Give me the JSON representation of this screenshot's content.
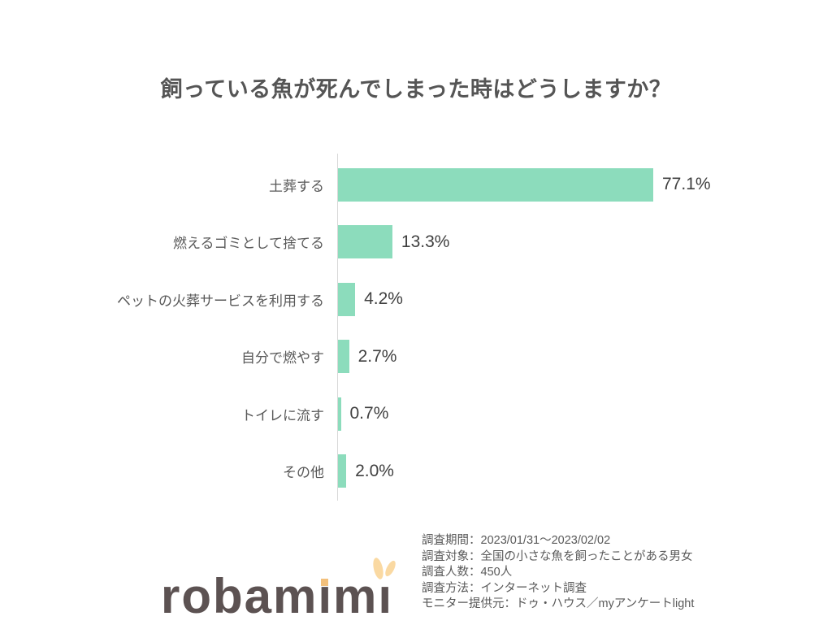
{
  "chart_data": {
    "type": "bar",
    "orientation": "horizontal",
    "title": "飼っている魚が死んでしまった時はどうしますか？",
    "categories": [
      "土葬する",
      "燃えるゴミとして捨てる",
      "ペットの火葬サービスを利用する",
      "自分で燃やす",
      "トイレに流す",
      "その他"
    ],
    "values": [
      77.1,
      13.3,
      4.2,
      2.7,
      0.7,
      2.0
    ],
    "value_labels": [
      "77.1%",
      "13.3%",
      "4.2%",
      "2.7%",
      "0.7%",
      "2.0%"
    ],
    "unit": "%",
    "xlim": [
      0,
      100
    ],
    "grid": false,
    "legend": false,
    "category_labels_position": "left",
    "value_labels_position": "right-of-bar",
    "bar_color": "#8cdcbc",
    "axis_color": "#d9d9d9"
  },
  "footer": {
    "survey_info_lines": [
      "調査期間：2023/01/31～2023/02/02",
      "調査対象：全国の小さな魚を飼ったことがある男女",
      "調査人数：450人",
      "調査方法：インターネット調査",
      "モニター提供元：ドゥ・ハウス／myアンケートlight"
    ],
    "logo_text": "robamimi",
    "logo_parts": {
      "p1": "robam",
      "i1": "ı",
      "p2": "m",
      "i2": "ı"
    },
    "logo_colors": {
      "text": "#5c5252",
      "dot": "#f3c07b",
      "ears": "#fad9a2"
    }
  }
}
